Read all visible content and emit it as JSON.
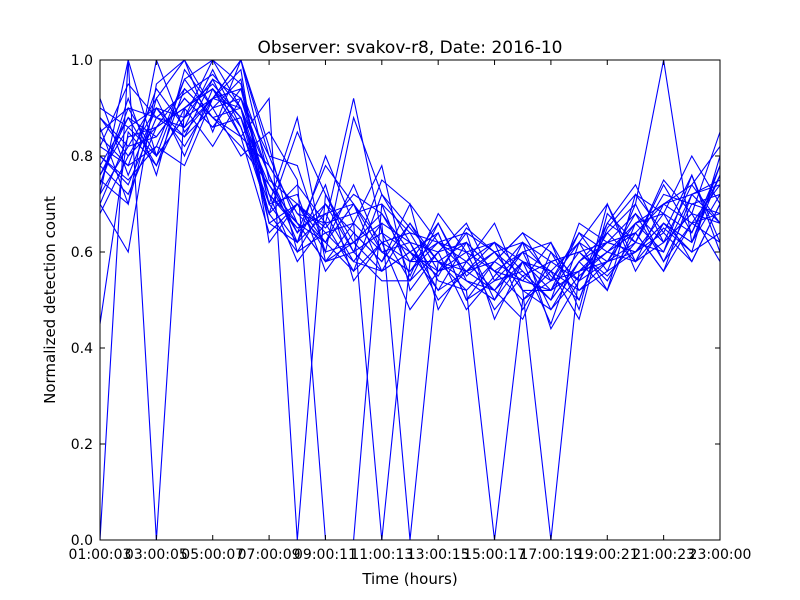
{
  "chart_data": {
    "type": "line",
    "title": "Observer: svakov-r8, Date: 2016-10",
    "xlabel": "Time (hours)",
    "ylabel": "Normalized detection count",
    "x": [
      "01:00:00",
      "02:00:00",
      "03:00:00",
      "04:00:00",
      "05:00:00",
      "06:00:00",
      "07:00:00",
      "08:00:00",
      "09:00:00",
      "10:00:00",
      "11:00:00",
      "12:00:00",
      "13:00:00",
      "14:00:00",
      "15:00:00",
      "16:00:00",
      "17:00:00",
      "18:00:00",
      "19:00:00",
      "20:00:00",
      "21:00:00",
      "22:00:00",
      "23:00:00"
    ],
    "x_tick_labels": [
      "01:00:03",
      "03:00:05",
      "05:00:07",
      "07:00:09",
      "09:00:11",
      "11:00:13",
      "13:00:15",
      "15:00:17",
      "17:00:19",
      "19:00:21",
      "21:00:23",
      "23:00:00"
    ],
    "ylim": [
      0,
      1
    ],
    "y_tick_labels": [
      "0.0",
      "0.2",
      "0.4",
      "0.6",
      "0.8",
      "1.0"
    ],
    "grid": false,
    "color": "#0000ff",
    "series": [
      {
        "values": [
          0.82,
          0.95,
          0.88,
          0.93,
          0.97,
          0.9,
          0.72,
          0.65,
          0.68,
          0.7,
          0.62,
          0.58,
          0.66,
          0.55,
          0.6,
          0.52,
          0.48,
          0.55,
          0.6,
          0.66,
          0.7,
          0.72,
          0.75
        ]
      },
      {
        "values": [
          0.75,
          0.7,
          1.0,
          0.85,
          0.92,
          1.0,
          0.8,
          0.78,
          0.6,
          0.88,
          0.72,
          0.65,
          0.58,
          0.62,
          0.5,
          0.58,
          0.45,
          0.62,
          0.7,
          0.58,
          0.65,
          0.6,
          0.8
        ]
      },
      {
        "values": [
          0.0,
          1.0,
          0.8,
          0.88,
          1.0,
          0.95,
          0.7,
          0.62,
          0.8,
          0.66,
          0.78,
          0.52,
          0.6,
          0.48,
          0.55,
          0.62,
          0.55,
          0.5,
          0.65,
          0.72,
          0.68,
          0.8,
          0.7
        ]
      },
      {
        "values": [
          0.88,
          0.82,
          0.92,
          1.0,
          0.85,
          1.0,
          0.75,
          0.7,
          0.65,
          0.72,
          0.68,
          0.6,
          0.55,
          0.65,
          0.6,
          0.55,
          0.58,
          0.6,
          0.55,
          0.62,
          0.75,
          0.68,
          0.85
        ]
      },
      {
        "values": [
          0.45,
          0.85,
          0.78,
          0.9,
          0.95,
          0.88,
          0.68,
          0.85,
          0.72,
          0.6,
          0.75,
          0.7,
          0.62,
          0.58,
          0.52,
          0.6,
          0.62,
          0.52,
          0.58,
          0.68,
          0.62,
          0.74,
          0.66
        ]
      },
      {
        "values": [
          0.7,
          0.6,
          0.95,
          1.0,
          0.9,
          0.8,
          0.85,
          0.75,
          0.0,
          0.0,
          0.7,
          0.55,
          0.68,
          0.6,
          0.48,
          0.55,
          0.5,
          0.58,
          0.62,
          0.6,
          0.66,
          0.62,
          0.72
        ]
      },
      {
        "values": [
          0.8,
          0.75,
          0.82,
          0.78,
          0.92,
          0.98,
          0.62,
          0.7,
          0.64,
          0.58,
          0.66,
          0.62,
          0.5,
          0.56,
          0.62,
          0.58,
          0.52,
          0.64,
          0.56,
          0.7,
          0.58,
          0.7,
          0.68
        ]
      },
      {
        "values": [
          0.72,
          1.0,
          0.0,
          0.9,
          0.94,
          0.84,
          0.92,
          0.0,
          0.72,
          0.62,
          0.56,
          0.66,
          0.58,
          0.52,
          0.0,
          0.5,
          0.56,
          0.46,
          0.68,
          0.62,
          0.74,
          0.64,
          0.78
        ]
      },
      {
        "values": [
          0.85,
          0.9,
          0.88,
          0.84,
          0.96,
          0.92,
          0.76,
          0.64,
          0.78,
          0.7,
          0.6,
          0.56,
          0.64,
          0.5,
          0.58,
          0.64,
          0.54,
          0.62,
          0.58,
          0.66,
          0.6,
          0.76,
          0.62
        ]
      },
      {
        "values": [
          0.78,
          0.72,
          0.86,
          0.94,
          0.88,
          0.82,
          0.74,
          0.66,
          0.58,
          0.66,
          0.0,
          0.58,
          0.62,
          0.56,
          0.52,
          0.46,
          0.6,
          0.54,
          0.64,
          0.58,
          0.7,
          0.66,
          0.74
        ]
      },
      {
        "values": [
          0.9,
          0.86,
          0.8,
          0.96,
          1.0,
          0.9,
          0.68,
          0.74,
          0.66,
          0.92,
          0.64,
          0.6,
          0.52,
          0.62,
          0.56,
          0.6,
          0.48,
          0.58,
          0.52,
          0.72,
          0.64,
          0.58,
          0.7
        ]
      },
      {
        "values": [
          0.68,
          0.8,
          0.9,
          0.82,
          0.92,
          1.0,
          0.82,
          0.6,
          0.7,
          0.64,
          0.58,
          0.7,
          0.48,
          0.58,
          0.66,
          0.52,
          0.0,
          0.56,
          0.6,
          0.64,
          0.56,
          0.72,
          0.66
        ]
      },
      {
        "values": [
          0.76,
          0.88,
          0.84,
          0.92,
          0.86,
          0.94,
          0.78,
          0.68,
          0.62,
          0.56,
          0.72,
          0.62,
          0.6,
          0.66,
          0.54,
          0.56,
          0.5,
          0.66,
          0.62,
          0.6,
          0.68,
          0.64,
          0.76
        ]
      },
      {
        "values": [
          0.84,
          0.78,
          0.94,
          0.86,
          0.98,
          0.86,
          0.7,
          0.88,
          0.58,
          0.6,
          0.54,
          0.54,
          0.66,
          0.54,
          0.5,
          0.62,
          0.44,
          0.54,
          0.66,
          0.74,
          0.62,
          0.68,
          0.58
        ]
      },
      {
        "values": [
          0.74,
          0.92,
          0.76,
          0.98,
          0.9,
          0.96,
          0.66,
          0.62,
          0.74,
          0.54,
          0.62,
          0.48,
          0.56,
          0.6,
          0.62,
          0.48,
          0.58,
          0.6,
          0.54,
          0.64,
          0.7,
          0.74,
          0.82
        ]
      },
      {
        "values": [
          0.86,
          0.7,
          0.92,
          0.8,
          0.94,
          0.88,
          0.72,
          0.58,
          0.66,
          0.68,
          0.7,
          0.64,
          0.54,
          0.52,
          0.58,
          0.54,
          0.62,
          0.48,
          0.7,
          0.56,
          0.66,
          0.6,
          0.64
        ]
      },
      {
        "values": [
          0.7,
          0.84,
          0.86,
          0.9,
          0.82,
          0.92,
          0.8,
          0.66,
          0.62,
          0.74,
          0.6,
          0.56,
          0.62,
          0.64,
          0.46,
          0.58,
          0.54,
          0.56,
          0.58,
          0.62,
          0.72,
          0.7,
          0.72
        ]
      },
      {
        "values": [
          0.92,
          0.76,
          0.9,
          0.88,
          0.96,
          0.84,
          0.64,
          0.7,
          0.6,
          0.62,
          0.66,
          0.0,
          0.58,
          0.56,
          0.6,
          0.52,
          0.52,
          0.6,
          0.62,
          0.68,
          0.58,
          0.66,
          0.68
        ]
      },
      {
        "values": [
          0.78,
          0.88,
          0.78,
          0.94,
          0.88,
          0.9,
          0.76,
          0.62,
          0.68,
          0.58,
          0.56,
          0.6,
          0.64,
          0.5,
          0.54,
          0.6,
          0.56,
          0.52,
          0.56,
          0.6,
          0.64,
          0.76,
          0.6
        ]
      },
      {
        "values": [
          0.8,
          0.74,
          0.88,
          0.86,
          0.92,
          0.94,
          0.7,
          0.72,
          0.56,
          0.64,
          0.58,
          0.66,
          0.56,
          0.58,
          0.62,
          0.56,
          0.5,
          0.58,
          0.64,
          0.7,
          1.0,
          0.62,
          0.78
        ]
      },
      {
        "values": [
          0.72,
          0.82,
          0.84,
          0.92,
          0.86,
          0.88,
          0.74,
          0.64,
          0.7,
          0.6,
          0.64,
          0.54,
          0.6,
          0.62,
          0.56,
          0.5,
          0.54,
          0.64,
          0.6,
          0.58,
          0.62,
          0.68,
          0.66
        ]
      },
      {
        "values": [
          0.88,
          0.8,
          0.86,
          0.9,
          0.94,
          0.86,
          0.68,
          0.6,
          0.64,
          0.66,
          0.6,
          0.62,
          0.52,
          0.56,
          0.58,
          0.64,
          0.6,
          0.5,
          0.66,
          0.62,
          0.6,
          0.72,
          0.74
        ]
      },
      {
        "values": [
          0.76,
          0.86,
          0.9,
          0.84,
          0.9,
          0.92,
          0.72,
          0.66,
          0.58,
          0.62,
          0.68,
          0.58,
          0.58,
          0.54,
          0.52,
          0.58,
          0.56,
          0.62,
          0.52,
          0.66,
          0.68,
          0.58,
          0.7
        ]
      },
      {
        "values": [
          0.82,
          0.78,
          0.82,
          0.96,
          0.88,
          0.84,
          0.78,
          0.68,
          0.66,
          0.56,
          0.62,
          0.64,
          0.62,
          0.6,
          0.56,
          0.54,
          0.52,
          0.56,
          0.62,
          0.64,
          0.56,
          0.66,
          0.62
        ]
      },
      {
        "values": [
          0.74,
          0.9,
          0.8,
          0.88,
          0.92,
          0.9,
          0.66,
          0.7,
          0.62,
          0.7,
          0.56,
          0.6,
          0.56,
          0.64,
          0.6,
          0.62,
          0.58,
          0.54,
          0.58,
          0.6,
          0.66,
          0.62,
          0.76
        ]
      }
    ]
  }
}
